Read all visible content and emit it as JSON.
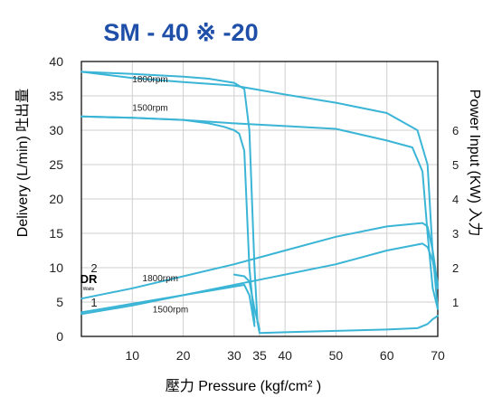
{
  "colors": {
    "title": "#1f4fa8",
    "curve": "#3bb5d6",
    "grid": "#cfcfcf",
    "axis": "#222222",
    "text": "#222222"
  },
  "chart_data": {
    "type": "line",
    "title": "SM - 40 ※ -20",
    "xlabel": "壓力 Pressure (kgf/cm² )",
    "ylabel": "Delivery (L/min) 吐出量",
    "y2label": "Power Input (KW) 入力",
    "xlim": [
      0,
      70
    ],
    "ylim": [
      0,
      40
    ],
    "x_ticks": [
      10,
      20,
      30,
      35,
      40,
      50,
      60,
      70
    ],
    "y_ticks": [
      0,
      5,
      10,
      15,
      20,
      25,
      30,
      35,
      40
    ],
    "y2lim": [
      0,
      8
    ],
    "y2_ticks": [
      1,
      2,
      3,
      4,
      5,
      6
    ],
    "dr_label": "DR",
    "dr_sublabel": "Watts",
    "dr_ticks": [
      1,
      2
    ],
    "grid": true,
    "series": [
      {
        "name": "1800rpm",
        "axis": "left",
        "x": [
          0,
          10,
          20,
          25,
          30,
          32,
          33,
          34,
          34.6,
          35,
          40,
          50,
          60,
          66,
          68,
          69,
          70
        ],
        "y": [
          38.5,
          38.2,
          37.8,
          37.5,
          36.9,
          36,
          30,
          10,
          2,
          0.5,
          0.6,
          0.8,
          1.0,
          1.2,
          1.8,
          2.5,
          3.0
        ]
      },
      {
        "name": "1800rpm",
        "axis": "left",
        "x": [
          0,
          10,
          20,
          30,
          40,
          50,
          60,
          66,
          68,
          69,
          70
        ],
        "y": [
          38.5,
          37.6,
          37.0,
          36.5,
          35.2,
          34.0,
          32.5,
          30,
          25,
          12,
          4
        ]
      },
      {
        "name": "1500rpm",
        "axis": "left",
        "x": [
          0,
          10,
          20,
          30,
          40,
          50,
          60,
          65,
          67,
          68,
          69,
          70
        ],
        "y": [
          32,
          31.8,
          31.5,
          31.0,
          30.6,
          30.2,
          28.5,
          27.5,
          24,
          15,
          7,
          4
        ]
      },
      {
        "name": "1500rpm",
        "axis": "left",
        "x": [
          0,
          10,
          20,
          25,
          28,
          30,
          31,
          32,
          33,
          34
        ],
        "y": [
          32,
          31.8,
          31.5,
          31,
          30.5,
          30,
          29.5,
          27,
          10,
          2
        ]
      },
      {
        "name": "1800rpm",
        "axis": "right",
        "x": [
          0,
          10,
          20,
          30,
          35,
          40,
          50,
          60,
          67,
          68,
          69,
          70
        ],
        "y": [
          1.1,
          1.4,
          1.75,
          2.1,
          2.3,
          2.5,
          2.9,
          3.2,
          3.3,
          3.2,
          2.5,
          1.5
        ]
      },
      {
        "name": "1500rpm",
        "axis": "right",
        "x": [
          0,
          10,
          20,
          30,
          35,
          40,
          50,
          60,
          67,
          68,
          69,
          70
        ],
        "y": [
          0.65,
          0.9,
          1.2,
          1.5,
          1.65,
          1.8,
          2.1,
          2.5,
          2.7,
          2.6,
          2.2,
          1.4
        ]
      },
      {
        "name": "1800rpm",
        "axis": "right",
        "x": [
          30,
          32,
          33,
          34,
          35
        ],
        "y": [
          1.8,
          1.75,
          1.6,
          0.8,
          0.2
        ]
      },
      {
        "name": "1500rpm",
        "axis": "right",
        "x": [
          0,
          10,
          20,
          30,
          32,
          33,
          34
        ],
        "y": [
          0.7,
          0.95,
          1.2,
          1.45,
          1.5,
          1.2,
          0.3
        ]
      }
    ],
    "annotations": [
      {
        "text": "1800rpm",
        "x": 10,
        "y": 37.0
      },
      {
        "text": "1500rpm",
        "x": 10,
        "y": 32.8
      },
      {
        "text": "1800rpm",
        "x": 12,
        "y": 8.0
      },
      {
        "text": "1500rpm",
        "x": 14,
        "y": 3.5
      }
    ]
  }
}
